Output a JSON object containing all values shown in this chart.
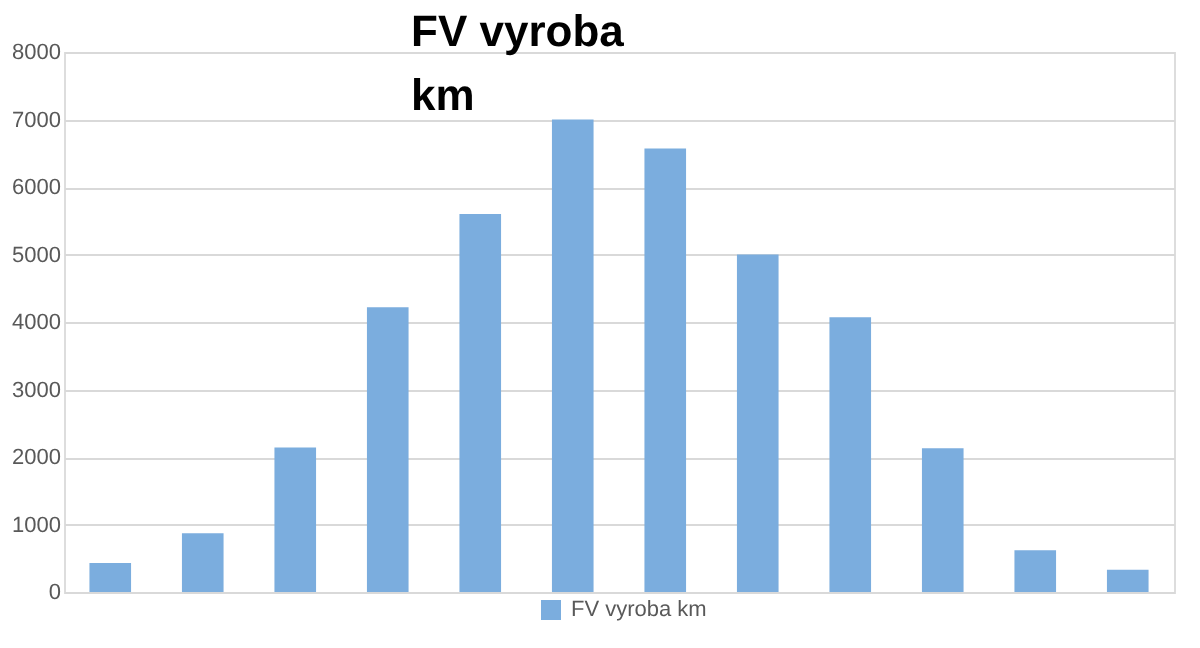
{
  "chart_data": {
    "type": "bar",
    "title": "FV vyroba km",
    "categories": [
      null,
      null,
      null,
      null,
      null,
      null,
      null,
      null,
      null,
      null,
      null,
      null
    ],
    "series": [
      {
        "name": "FV vyroba km",
        "color": "#7badde",
        "values": [
          430,
          870,
          2140,
          4220,
          5600,
          7000,
          6570,
          5000,
          4070,
          2130,
          620,
          330
        ]
      }
    ],
    "ylim": [
      0,
      8000
    ],
    "yticks": [
      0,
      1000,
      2000,
      3000,
      4000,
      5000,
      6000,
      7000,
      8000
    ],
    "grid": "y",
    "legend": "bottom",
    "tick_labels": "y"
  }
}
